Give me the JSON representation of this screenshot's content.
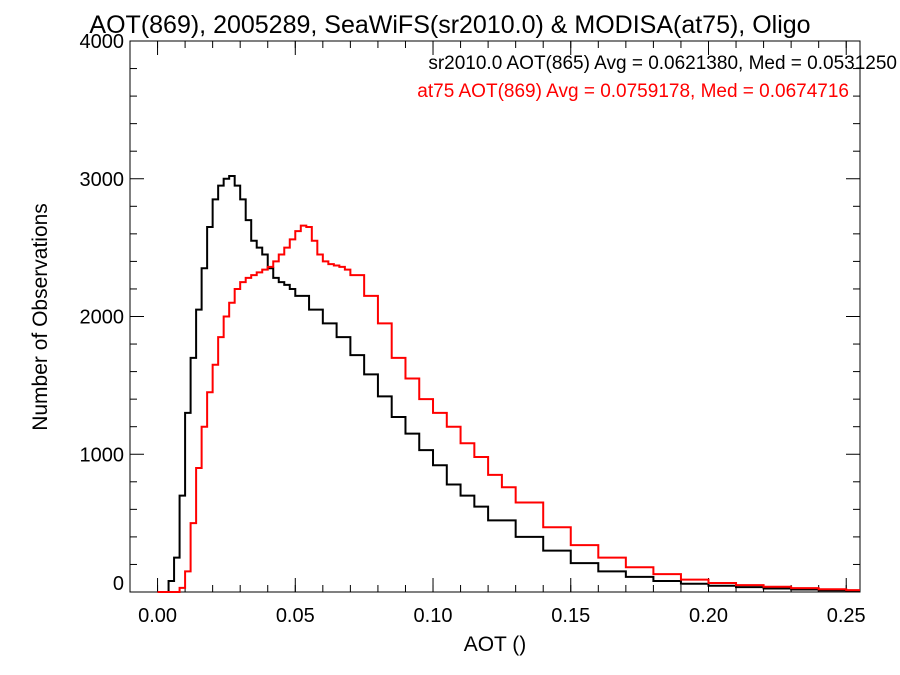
{
  "chart_data": {
    "type": "line",
    "title": "AOT(869), 2005289, SeaWiFS(sr2010.0) & MODISA(at75), Oligo",
    "xlabel": "AOT ()",
    "ylabel": "Number of Observations",
    "xlim": [
      -0.01,
      0.255
    ],
    "ylim": [
      0,
      4000
    ],
    "x_ticks": [
      0.0,
      0.05,
      0.1,
      0.15,
      0.2,
      0.25
    ],
    "x_tick_labels": [
      "0.00",
      "0.05",
      "0.10",
      "0.15",
      "0.20",
      "0.25"
    ],
    "y_ticks": [
      0,
      1000,
      2000,
      3000,
      4000
    ],
    "y_tick_labels": [
      "0",
      "1000",
      "2000",
      "3000",
      "4000"
    ],
    "grid": false,
    "annotations": [
      {
        "text": "sr2010.0 AOT(865) Avg = 0.0621380, Med = 0.0531250",
        "color": "#000000"
      },
      {
        "text": "at75 AOT(869) Avg = 0.0759178, Med = 0.0674716",
        "color": "#ff0000"
      }
    ],
    "series": [
      {
        "color": "#000000",
        "x": [
          0.0,
          0.004,
          0.006,
          0.008,
          0.01,
          0.012,
          0.014,
          0.016,
          0.018,
          0.02,
          0.022,
          0.024,
          0.026,
          0.028,
          0.03,
          0.032,
          0.034,
          0.036,
          0.038,
          0.04,
          0.042,
          0.044,
          0.046,
          0.048,
          0.05,
          0.055,
          0.06,
          0.065,
          0.07,
          0.075,
          0.08,
          0.085,
          0.09,
          0.095,
          0.1,
          0.105,
          0.11,
          0.115,
          0.12,
          0.13,
          0.14,
          0.15,
          0.16,
          0.17,
          0.18,
          0.19,
          0.2,
          0.21,
          0.22,
          0.23,
          0.24,
          0.25
        ],
        "y": [
          0,
          80,
          250,
          700,
          1300,
          1700,
          2050,
          2350,
          2650,
          2850,
          2950,
          3000,
          3020,
          2950,
          2850,
          2700,
          2550,
          2500,
          2450,
          2350,
          2280,
          2250,
          2230,
          2200,
          2150,
          2050,
          1950,
          1850,
          1720,
          1580,
          1420,
          1270,
          1150,
          1030,
          920,
          780,
          700,
          620,
          520,
          400,
          300,
          210,
          150,
          110,
          80,
          60,
          45,
          35,
          25,
          18,
          12,
          8
        ]
      },
      {
        "color": "#ff0000",
        "x": [
          0.0,
          0.005,
          0.008,
          0.01,
          0.012,
          0.014,
          0.016,
          0.018,
          0.02,
          0.022,
          0.024,
          0.026,
          0.028,
          0.03,
          0.032,
          0.034,
          0.036,
          0.038,
          0.04,
          0.042,
          0.044,
          0.046,
          0.048,
          0.05,
          0.052,
          0.054,
          0.056,
          0.058,
          0.06,
          0.062,
          0.064,
          0.066,
          0.068,
          0.07,
          0.075,
          0.08,
          0.085,
          0.09,
          0.095,
          0.1,
          0.105,
          0.11,
          0.115,
          0.12,
          0.125,
          0.13,
          0.14,
          0.15,
          0.16,
          0.17,
          0.18,
          0.19,
          0.2,
          0.21,
          0.22,
          0.23,
          0.24,
          0.25
        ],
        "y": [
          0,
          0,
          30,
          150,
          500,
          900,
          1200,
          1450,
          1650,
          1850,
          2000,
          2100,
          2200,
          2250,
          2280,
          2300,
          2320,
          2340,
          2360,
          2400,
          2450,
          2500,
          2560,
          2620,
          2660,
          2650,
          2550,
          2450,
          2400,
          2380,
          2370,
          2360,
          2340,
          2300,
          2150,
          1950,
          1700,
          1550,
          1400,
          1300,
          1200,
          1080,
          980,
          850,
          760,
          650,
          470,
          340,
          250,
          180,
          130,
          90,
          65,
          50,
          38,
          28,
          20,
          14
        ]
      }
    ]
  }
}
